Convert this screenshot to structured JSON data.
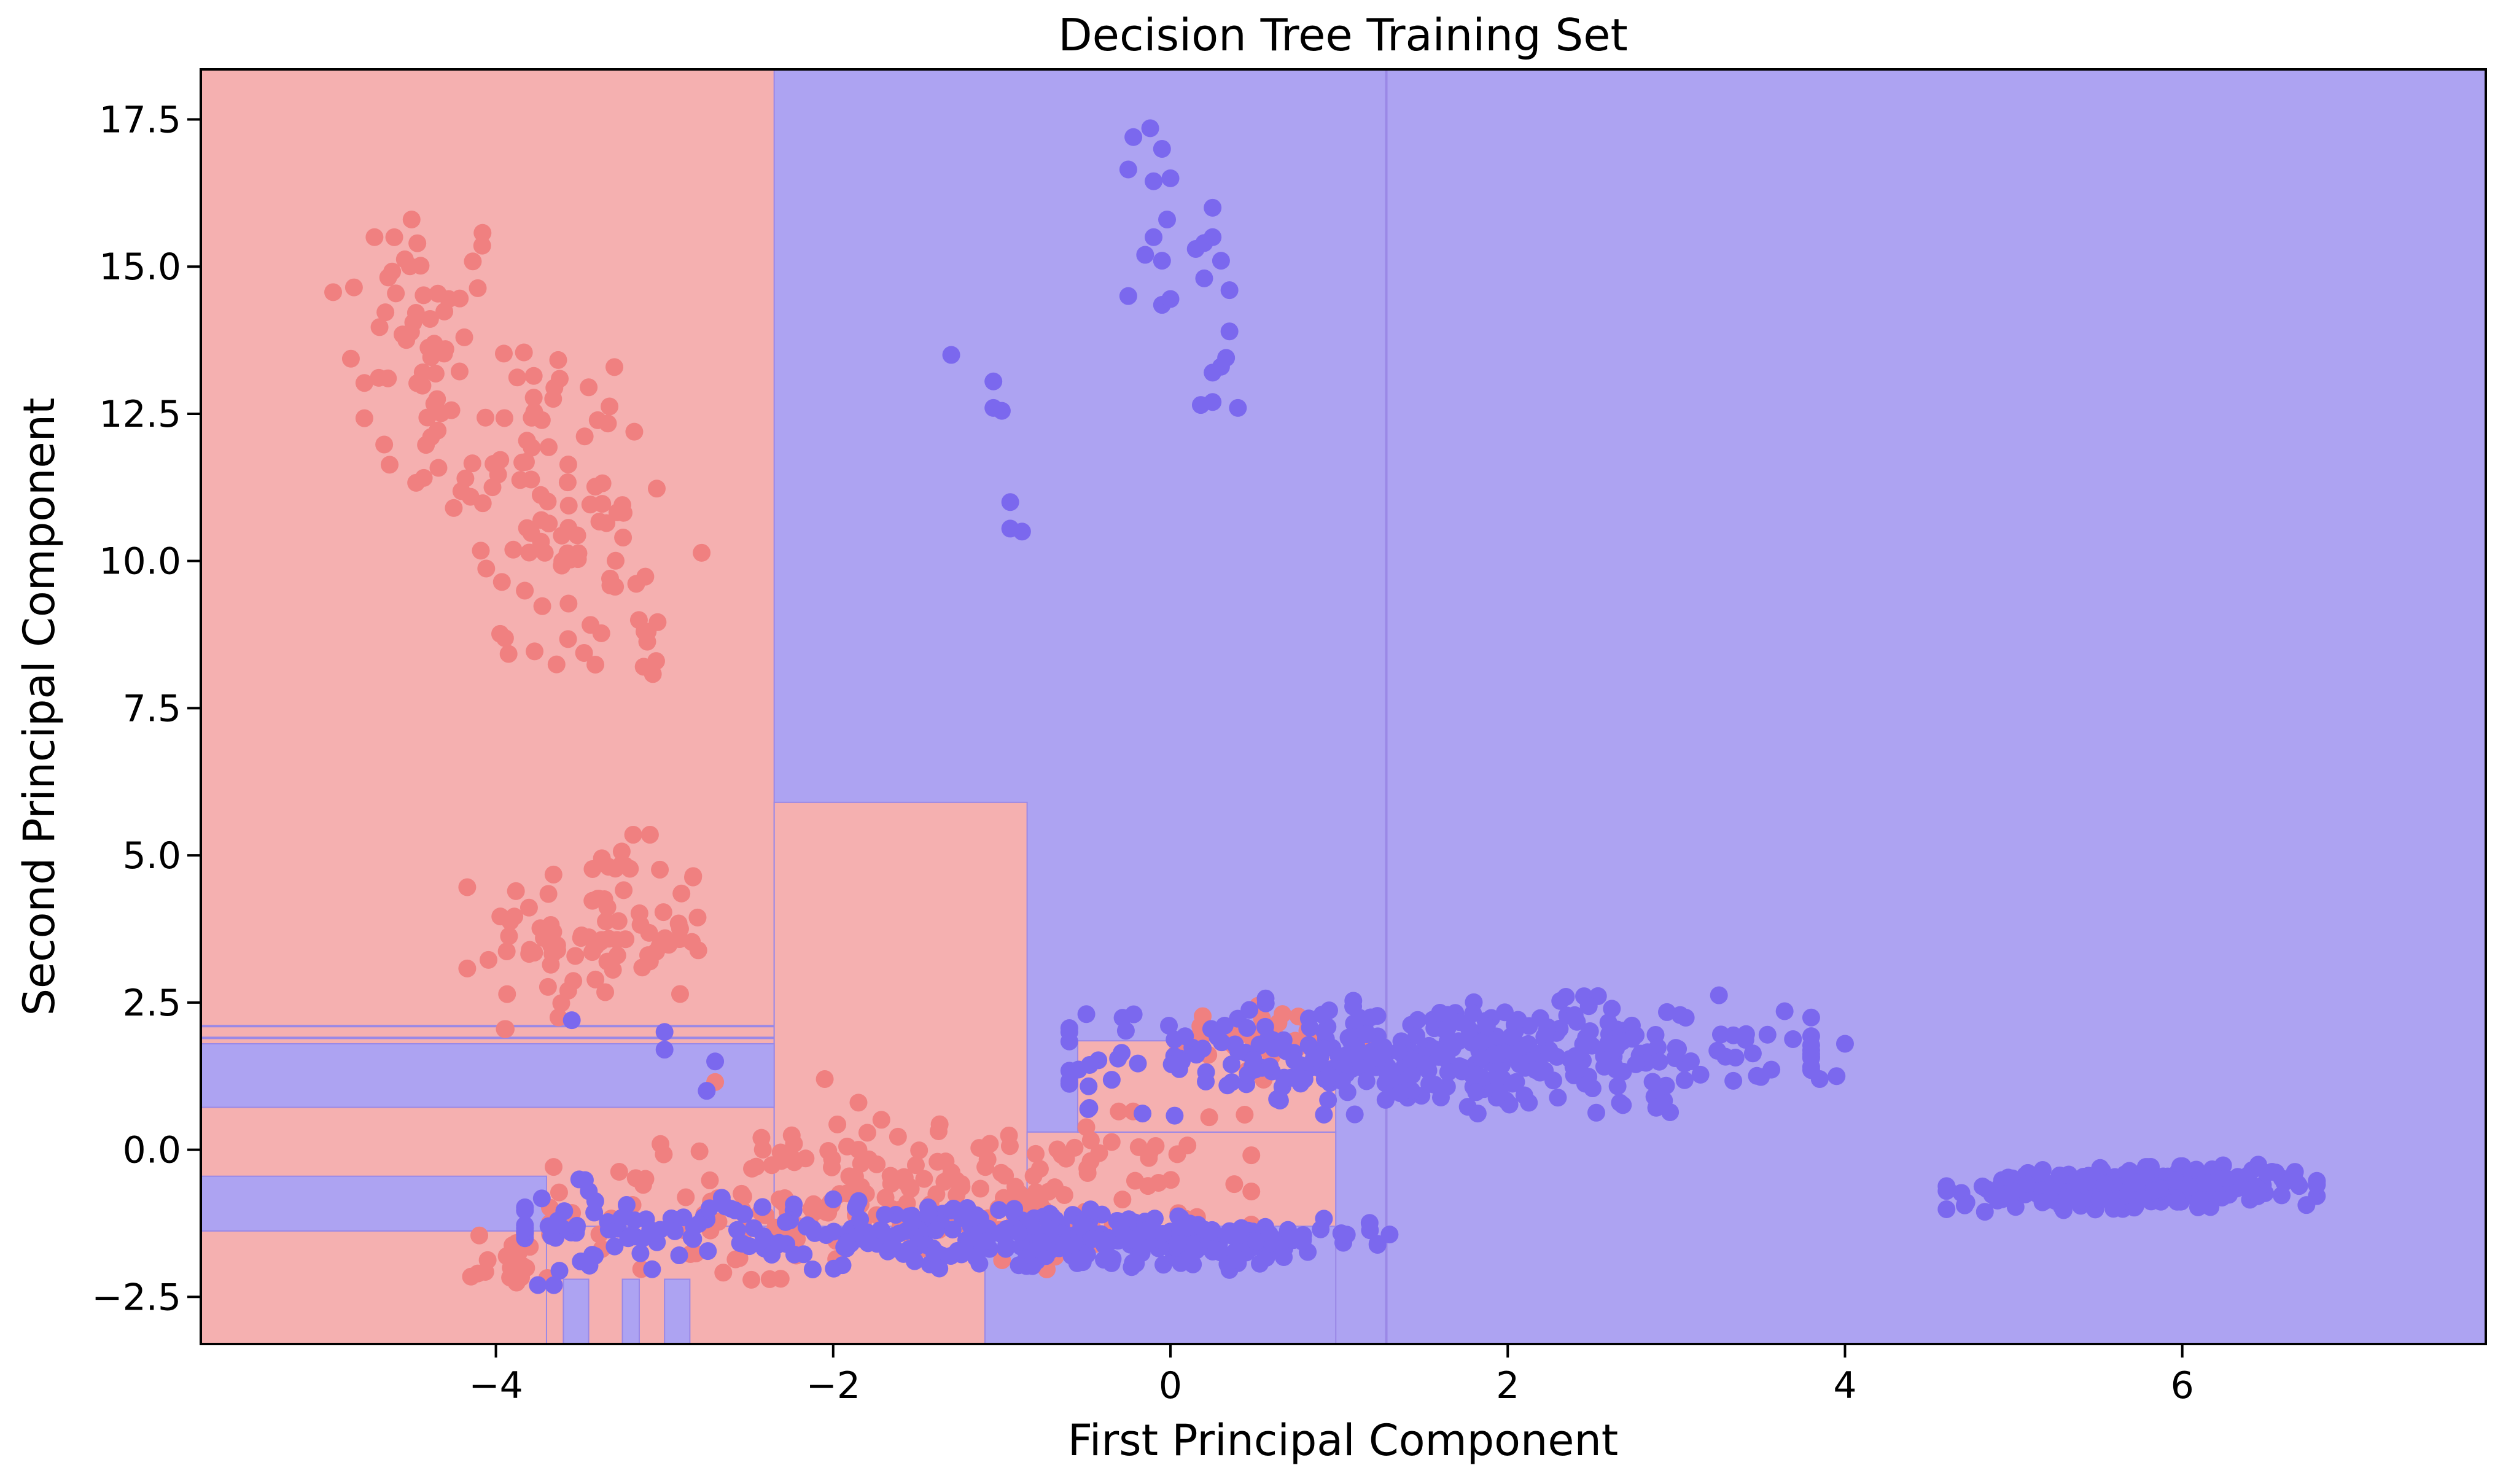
{
  "chart_data": {
    "type": "scatter",
    "title": "Decision Tree Training Set",
    "xlabel": "First Principal Component",
    "ylabel": "Second Principal Component",
    "xlim": [
      -5.75,
      7.8
    ],
    "ylim": [
      -3.3,
      18.35
    ],
    "xticks": [
      -4,
      -2,
      0,
      2,
      4,
      6
    ],
    "xtick_labels": [
      "−4",
      "−2",
      "0",
      "2",
      "4",
      "6"
    ],
    "yticks": [
      -2.5,
      0.0,
      2.5,
      5.0,
      7.5,
      10.0,
      12.5,
      15.0,
      17.5
    ],
    "ytick_labels": [
      "−2.5",
      "0.0",
      "2.5",
      "5.0",
      "7.5",
      "10.0",
      "12.5",
      "15.0",
      "17.5"
    ],
    "grid": false,
    "colors": {
      "class_0_point": "#f08080",
      "class_1_point": "#7b68ee",
      "class_0_region": "#f5b0b0",
      "class_1_region": "#ada3f2",
      "boundary": "#9a88e6"
    },
    "background_class": 1,
    "decision_regions": [
      {
        "x": [
          -5.75,
          -2.35
        ],
        "y": [
          -3.3,
          18.35
        ],
        "class": 0
      },
      {
        "x": [
          -2.35,
          -0.85
        ],
        "y": [
          -3.3,
          5.9
        ],
        "class": 0
      },
      {
        "x": [
          -0.85,
          0.98
        ],
        "y": [
          -3.3,
          0.3
        ],
        "class": 0
      },
      {
        "x": [
          -5.75,
          -2.35
        ],
        "y": [
          0.72,
          1.8
        ],
        "class": 1
      },
      {
        "x": [
          -5.75,
          -3.7
        ],
        "y": [
          -1.38,
          -0.45
        ],
        "class": 1
      },
      {
        "x": [
          -3.7,
          -1.1
        ],
        "y": [
          -3.3,
          -1.3
        ],
        "class": 0
      },
      {
        "x": [
          -1.1,
          0.98
        ],
        "y": [
          -3.3,
          -1.3
        ],
        "class": 1
      },
      {
        "x": [
          -0.85,
          0.98
        ],
        "y": [
          -1.3,
          0.3
        ],
        "class": 0
      },
      {
        "x": [
          -0.55,
          0.98
        ],
        "y": [
          0.3,
          1.85
        ],
        "class": 0
      },
      {
        "x": [
          -3.6,
          -3.45
        ],
        "y": [
          -3.3,
          -2.2
        ],
        "class": 1
      },
      {
        "x": [
          -3.25,
          -3.15
        ],
        "y": [
          -3.3,
          -2.2
        ],
        "class": 1
      },
      {
        "x": [
          -3.0,
          -2.85
        ],
        "y": [
          -3.3,
          -2.2
        ],
        "class": 1
      }
    ],
    "boundary_lines": [
      {
        "x": [
          1.28,
          1.28
        ],
        "y": [
          -3.3,
          18.35
        ]
      },
      {
        "x": [
          -5.75,
          -2.35
        ],
        "y": [
          2.1,
          2.1
        ]
      },
      {
        "x": [
          -5.75,
          -2.35
        ],
        "y": [
          1.9,
          1.9
        ]
      }
    ],
    "series": [
      {
        "class": 0,
        "clusters": [
          {
            "n": 40,
            "cx": -4.45,
            "cy": 14.2,
            "sx": 0.28,
            "sy": 0.9,
            "rot": 0
          },
          {
            "n": 60,
            "cx": -3.9,
            "cy": 12.0,
            "sx": 0.4,
            "sy": 0.9,
            "rot": 0
          },
          {
            "n": 40,
            "cx": -3.55,
            "cy": 10.0,
            "sx": 0.35,
            "sy": 0.9,
            "rot": 0
          },
          {
            "n": 12,
            "cx": -3.3,
            "cy": 8.6,
            "sx": 0.3,
            "sy": 0.3,
            "rot": 0
          },
          {
            "n": 90,
            "cx": -3.4,
            "cy": 3.7,
            "sx": 0.35,
            "sy": 0.75,
            "rot": 0
          },
          {
            "n": 230,
            "cx": -1.6,
            "cy": -0.8,
            "sx": 0.95,
            "sy": 0.6,
            "rot": 0.1
          },
          {
            "n": 40,
            "cx": 0.55,
            "cy": 1.85,
            "sx": 0.35,
            "sy": 0.3,
            "rot": 0
          },
          {
            "n": 20,
            "cx": -3.9,
            "cy": -1.9,
            "sx": 0.12,
            "sy": 0.25,
            "rot": 0
          }
        ],
        "points": [
          [
            -4.72,
            15.5
          ],
          [
            -4.5,
            15.8
          ],
          [
            -4.28,
            14.45
          ],
          [
            -2.7,
            1.15
          ],
          [
            -2.05,
            1.2
          ],
          [
            -1.85,
            0.8
          ],
          [
            -1.85,
            0.0
          ],
          [
            -3.1,
            8.8
          ],
          [
            -3.05,
            8.3
          ],
          [
            -3.25,
            10.95
          ],
          [
            -3.45,
            12.95
          ],
          [
            -4.25,
            10.9
          ]
        ]
      },
      {
        "class": 1,
        "clusters": [
          {
            "n": 380,
            "cx": 1.6,
            "cy": 1.6,
            "sx": 1.0,
            "sy": 0.45,
            "rot": 0.02
          },
          {
            "n": 260,
            "cx": -1.3,
            "cy": -1.45,
            "sx": 1.15,
            "sy": 0.28,
            "rot": -0.04
          },
          {
            "n": 110,
            "cx": 0.2,
            "cy": -1.55,
            "sx": 0.5,
            "sy": 0.18,
            "rot": 0.03
          },
          {
            "n": 300,
            "cx": 5.7,
            "cy": -0.65,
            "sx": 0.5,
            "sy": 0.16,
            "rot": 0.06
          },
          {
            "n": 25,
            "cx": -3.4,
            "cy": -1.2,
            "sx": 0.22,
            "sy": 0.5,
            "rot": 0
          }
        ],
        "points": [
          [
            -0.22,
            17.2
          ],
          [
            -0.12,
            17.35
          ],
          [
            -0.05,
            17.0
          ],
          [
            -0.25,
            16.65
          ],
          [
            -0.1,
            16.45
          ],
          [
            0.0,
            16.5
          ],
          [
            -0.02,
            15.8
          ],
          [
            -0.15,
            15.2
          ],
          [
            -0.05,
            15.1
          ],
          [
            -0.1,
            15.5
          ],
          [
            -0.25,
            14.5
          ],
          [
            -0.05,
            14.35
          ],
          [
            0.0,
            14.45
          ],
          [
            0.15,
            15.3
          ],
          [
            0.2,
            15.4
          ],
          [
            0.25,
            15.5
          ],
          [
            0.25,
            16.0
          ],
          [
            0.3,
            15.1
          ],
          [
            0.35,
            14.6
          ],
          [
            0.2,
            14.8
          ],
          [
            0.25,
            13.2
          ],
          [
            0.3,
            13.3
          ],
          [
            0.35,
            13.9
          ],
          [
            0.33,
            13.45
          ],
          [
            0.18,
            12.65
          ],
          [
            0.25,
            12.7
          ],
          [
            0.4,
            12.6
          ],
          [
            -1.3,
            13.5
          ],
          [
            -1.05,
            13.05
          ],
          [
            -1.05,
            12.6
          ],
          [
            -1.0,
            12.55
          ],
          [
            -0.95,
            11.0
          ],
          [
            -0.95,
            10.55
          ],
          [
            -0.88,
            10.5
          ],
          [
            -3.55,
            2.2
          ],
          [
            -3.0,
            2.0
          ],
          [
            -3.0,
            1.7
          ],
          [
            -2.7,
            1.5
          ],
          [
            -2.75,
            1.0
          ],
          [
            4.0,
            1.8
          ],
          [
            3.95,
            1.25
          ],
          [
            3.85,
            1.2
          ]
        ]
      }
    ]
  }
}
